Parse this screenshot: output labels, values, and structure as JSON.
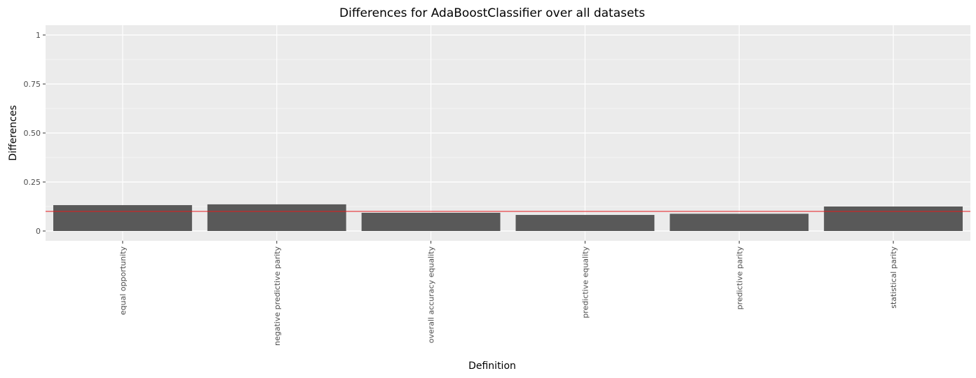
{
  "chart_data": {
    "type": "bar",
    "title": "Differences for AdaBoostClassifier over all datasets",
    "xlabel": "Definition",
    "ylabel": "Differences",
    "categories": [
      "equal opportunity",
      "negative predictive parity",
      "overall accuracy equality",
      "predictive equality",
      "predictive parity",
      "statistical parity"
    ],
    "values": [
      0.132,
      0.136,
      0.093,
      0.082,
      0.088,
      0.125
    ],
    "ylim": [
      -0.05,
      1.05
    ],
    "yticks": [
      0,
      0.25,
      0.5,
      0.75,
      1
    ],
    "ytick_labels": [
      "0",
      "0.25",
      "0.50",
      "0.75",
      "1"
    ],
    "reference_line": {
      "value": 0.1,
      "color": "#e41a1c"
    },
    "grid": true,
    "legend": "none",
    "colors": {
      "panel_background": "#ebebeb",
      "grid": "#ffffff",
      "bar": "#595959"
    }
  }
}
